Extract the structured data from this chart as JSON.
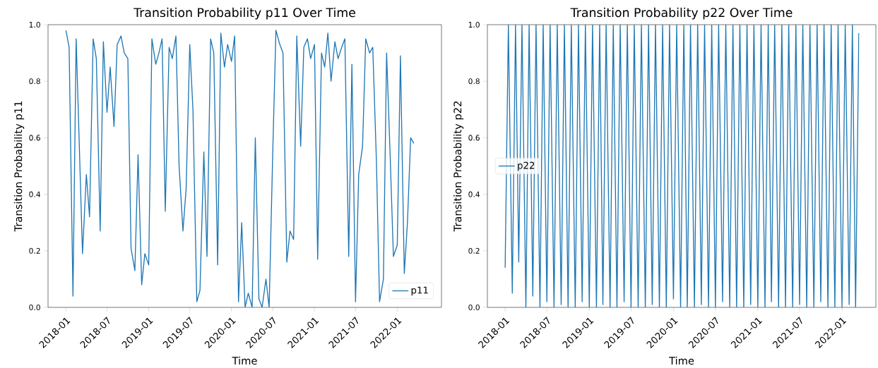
{
  "chart_data": [
    {
      "type": "line",
      "title": "Transition Probability p11 Over Time",
      "xlabel": "Time",
      "ylabel": "Transition Probability p11",
      "xlim": [
        "2017-10-14",
        "2022-07-15"
      ],
      "ylim": [
        0,
        1
      ],
      "xticks": [
        {
          "value": "2018-01",
          "label": "2018-01"
        },
        {
          "value": "2018-07",
          "label": "2018-07"
        },
        {
          "value": "2019-01",
          "label": "2019-01"
        },
        {
          "value": "2019-07",
          "label": "2019-07"
        },
        {
          "value": "2020-01",
          "label": "2020-01"
        },
        {
          "value": "2020-07",
          "label": "2020-07"
        },
        {
          "value": "2021-01",
          "label": "2021-01"
        },
        {
          "value": "2021-07",
          "label": "2021-07"
        },
        {
          "value": "2022-01",
          "label": "2022-01"
        }
      ],
      "yticks": [
        {
          "value": 0,
          "label": "0.0"
        },
        {
          "value": 0.2,
          "label": "0.2"
        },
        {
          "value": 0.4,
          "label": "0.4"
        },
        {
          "value": 0.6,
          "label": "0.6"
        },
        {
          "value": 0.8,
          "label": "0.8"
        },
        {
          "value": 1,
          "label": "1.0"
        }
      ],
      "grid": false,
      "legend": "bottom right",
      "marker": "none",
      "line_style": "solid",
      "x": [
        "2018-01-01",
        "2018-01-15",
        "2018-02-01",
        "2018-02-15",
        "2018-03-01",
        "2018-03-15",
        "2018-04-01",
        "2018-04-15",
        "2018-05-01",
        "2018-05-15",
        "2018-06-01",
        "2018-06-15",
        "2018-07-01",
        "2018-07-15",
        "2018-08-01",
        "2018-08-15",
        "2018-09-01",
        "2018-09-15",
        "2018-10-01",
        "2018-10-15",
        "2018-11-01",
        "2018-11-15",
        "2018-12-01",
        "2018-12-15",
        "2019-01-01",
        "2019-01-15",
        "2019-02-01",
        "2019-02-15",
        "2019-03-01",
        "2019-03-15",
        "2019-04-01",
        "2019-04-15",
        "2019-05-01",
        "2019-05-15",
        "2019-06-01",
        "2019-06-15",
        "2019-07-01",
        "2019-07-15",
        "2019-08-01",
        "2019-08-15",
        "2019-09-01",
        "2019-09-15",
        "2019-10-01",
        "2019-10-15",
        "2019-11-01",
        "2019-11-15",
        "2019-12-01",
        "2019-12-15",
        "2020-01-01",
        "2020-01-15",
        "2020-02-01",
        "2020-02-15",
        "2020-03-01",
        "2020-03-15",
        "2020-04-01",
        "2020-04-15",
        "2020-05-01",
        "2020-05-15",
        "2020-06-01",
        "2020-06-15",
        "2020-07-01",
        "2020-07-15",
        "2020-08-01",
        "2020-08-15",
        "2020-09-01",
        "2020-09-15",
        "2020-10-01",
        "2020-10-15",
        "2020-11-01",
        "2020-11-15",
        "2020-12-01",
        "2020-12-15",
        "2021-01-01",
        "2021-01-15",
        "2021-02-01",
        "2021-02-15",
        "2021-03-01",
        "2021-03-15",
        "2021-04-01",
        "2021-04-15",
        "2021-05-01",
        "2021-05-15",
        "2021-06-01",
        "2021-06-15",
        "2021-07-01",
        "2021-07-15",
        "2021-08-01",
        "2021-08-15",
        "2021-09-01",
        "2021-09-15",
        "2021-10-01",
        "2021-10-15",
        "2021-11-01",
        "2021-11-15",
        "2021-12-01",
        "2021-12-15",
        "2022-01-01",
        "2022-01-15",
        "2022-02-01",
        "2022-02-15",
        "2022-03-01",
        "2022-03-15"
      ],
      "series": [
        {
          "name": "p11",
          "color": "#1f77b4",
          "values": [
            0.98,
            0.92,
            0.04,
            0.95,
            0.57,
            0.19,
            0.47,
            0.32,
            0.95,
            0.88,
            0.27,
            0.94,
            0.69,
            0.85,
            0.64,
            0.93,
            0.96,
            0.9,
            0.88,
            0.21,
            0.13,
            0.54,
            0.08,
            0.19,
            0.15,
            0.95,
            0.86,
            0.9,
            0.95,
            0.34,
            0.92,
            0.88,
            0.96,
            0.5,
            0.27,
            0.42,
            0.93,
            0.7,
            0.02,
            0.06,
            0.55,
            0.18,
            0.95,
            0.9,
            0.15,
            0.97,
            0.85,
            0.93,
            0.87,
            0.96,
            0.02,
            0.3,
            0,
            0.05,
            0,
            0.6,
            0.03,
            0,
            0.1,
            0,
            0.55,
            0.98,
            0.93,
            0.9,
            0.16,
            0.27,
            0.24,
            0.96,
            0.57,
            0.92,
            0.95,
            0.88,
            0.93,
            0.17,
            0.9,
            0.85,
            0.97,
            0.8,
            0.94,
            0.88,
            0.92,
            0.95,
            0.18,
            0.86,
            0.02,
            0.47,
            0.57,
            0.95,
            0.9,
            0.92,
            0.52,
            0.02,
            0.1,
            0.9,
            0.53,
            0.18,
            0.22,
            0.89,
            0.12,
            0.3,
            0.6,
            0.58
          ]
        }
      ]
    },
    {
      "type": "line",
      "title": "Transition Probability p22 Over Time",
      "xlabel": "Time",
      "ylabel": "Transition Probability p22",
      "xlim": [
        "2017-10-16",
        "2022-05-28"
      ],
      "ylim": [
        0,
        1
      ],
      "xticks": [
        {
          "value": "2018-01",
          "label": "2018-01"
        },
        {
          "value": "2018-07",
          "label": "2018-07"
        },
        {
          "value": "2019-01",
          "label": "2019-01"
        },
        {
          "value": "2019-07",
          "label": "2019-07"
        },
        {
          "value": "2020-01",
          "label": "2020-01"
        },
        {
          "value": "2020-07",
          "label": "2020-07"
        },
        {
          "value": "2021-01",
          "label": "2021-01"
        },
        {
          "value": "2021-07",
          "label": "2021-07"
        },
        {
          "value": "2022-01",
          "label": "2022-01"
        }
      ],
      "yticks": [
        {
          "value": 0,
          "label": "0.0"
        },
        {
          "value": 0.2,
          "label": "0.2"
        },
        {
          "value": 0.4,
          "label": "0.4"
        },
        {
          "value": 0.6,
          "label": "0.6"
        },
        {
          "value": 0.8,
          "label": "0.8"
        },
        {
          "value": 1,
          "label": "1.0"
        }
      ],
      "grid": false,
      "legend": "left",
      "marker": "none",
      "line_style": "solid",
      "x": [
        "2018-01-01",
        "2018-01-15",
        "2018-02-01",
        "2018-02-15",
        "2018-03-01",
        "2018-03-15",
        "2018-04-01",
        "2018-04-15",
        "2018-05-01",
        "2018-05-15",
        "2018-06-01",
        "2018-06-15",
        "2018-07-01",
        "2018-07-15",
        "2018-08-01",
        "2018-08-15",
        "2018-09-01",
        "2018-09-15",
        "2018-10-01",
        "2018-10-15",
        "2018-11-01",
        "2018-11-15",
        "2018-12-01",
        "2018-12-15",
        "2019-01-01",
        "2019-01-15",
        "2019-02-01",
        "2019-02-15",
        "2019-03-01",
        "2019-03-15",
        "2019-04-01",
        "2019-04-15",
        "2019-05-01",
        "2019-05-15",
        "2019-06-01",
        "2019-06-15",
        "2019-07-01",
        "2019-07-15",
        "2019-08-01",
        "2019-08-15",
        "2019-09-01",
        "2019-09-15",
        "2019-10-01",
        "2019-10-15",
        "2019-11-01",
        "2019-11-15",
        "2019-12-01",
        "2019-12-15",
        "2020-01-01",
        "2020-01-15",
        "2020-02-01",
        "2020-02-15",
        "2020-03-01",
        "2020-03-15",
        "2020-04-01",
        "2020-04-15",
        "2020-05-01",
        "2020-05-15",
        "2020-06-01",
        "2020-06-15",
        "2020-07-01",
        "2020-07-15",
        "2020-08-01",
        "2020-08-15",
        "2020-09-01",
        "2020-09-15",
        "2020-10-01",
        "2020-10-15",
        "2020-11-01",
        "2020-11-15",
        "2020-12-01",
        "2020-12-15",
        "2021-01-01",
        "2021-01-15",
        "2021-02-01",
        "2021-02-15",
        "2021-03-01",
        "2021-03-15",
        "2021-04-01",
        "2021-04-15",
        "2021-05-01",
        "2021-05-15",
        "2021-06-01",
        "2021-06-15",
        "2021-07-01",
        "2021-07-15",
        "2021-08-01",
        "2021-08-15",
        "2021-09-01",
        "2021-09-15",
        "2021-10-01",
        "2021-10-15",
        "2021-11-01",
        "2021-11-15",
        "2021-12-01",
        "2021-12-15",
        "2022-01-01",
        "2022-01-15",
        "2022-02-01",
        "2022-02-15",
        "2022-03-01",
        "2022-03-15"
      ],
      "series": [
        {
          "name": "p22",
          "color": "#1f77b4",
          "values": [
            0.14,
            1,
            0.05,
            1,
            0.16,
            1,
            0,
            1,
            0.04,
            1,
            0,
            1,
            0.02,
            1,
            0,
            1,
            0.01,
            1,
            0,
            1,
            0,
            1,
            0.02,
            1,
            0,
            1,
            0,
            1,
            0.01,
            1,
            0,
            1,
            0,
            1,
            0.02,
            1,
            0,
            1,
            0,
            1,
            0,
            1,
            0.01,
            1,
            0,
            1,
            0,
            1,
            0.03,
            1,
            0,
            1,
            0,
            1,
            0,
            1,
            0.01,
            1,
            0,
            1,
            0,
            1,
            0.02,
            1,
            0,
            1,
            0,
            1,
            0,
            1,
            0.01,
            1,
            0,
            1,
            0,
            1,
            0.02,
            1,
            0,
            1,
            0,
            1,
            0,
            1,
            0.01,
            1,
            0,
            1,
            0,
            1,
            0.02,
            1,
            0,
            1,
            0,
            1,
            0,
            1,
            0.01,
            1,
            0,
            0.97
          ]
        }
      ]
    }
  ]
}
